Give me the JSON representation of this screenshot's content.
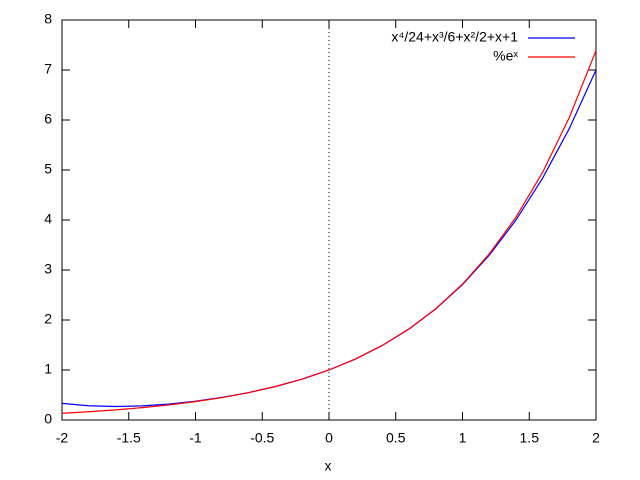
{
  "chart_data": {
    "type": "line",
    "xlabel": "x",
    "x": [
      -2,
      -1.8,
      -1.6,
      -1.4,
      -1.2,
      -1,
      -0.8,
      -0.6,
      -0.4,
      -0.2,
      0,
      0.2,
      0.4,
      0.6,
      0.8,
      1,
      1.2,
      1.4,
      1.6,
      1.8,
      2
    ],
    "series": [
      {
        "name": "x⁴/24+x³/6+x²/2+x+1",
        "color": "#0000ff",
        "values": [
          0.333,
          0.285,
          0.27,
          0.283,
          0.318,
          0.375,
          0.452,
          0.549,
          0.67,
          0.819,
          1,
          1.221,
          1.492,
          1.821,
          2.222,
          2.708,
          3.294,
          3.997,
          4.836,
          5.829,
          7.0
        ]
      },
      {
        "name": "%eˣ",
        "color": "#ff0000",
        "values": [
          0.135,
          0.165,
          0.202,
          0.247,
          0.301,
          0.368,
          0.449,
          0.549,
          0.67,
          0.819,
          1,
          1.221,
          1.492,
          1.822,
          2.226,
          2.718,
          3.32,
          4.055,
          4.953,
          6.05,
          7.389
        ]
      }
    ],
    "xlim": [
      -2,
      2
    ],
    "xticks": [
      -2,
      -1.5,
      -1,
      -0.5,
      0,
      0.5,
      1,
      1.5,
      2
    ],
    "ylim": [
      0,
      8
    ],
    "yticks": [
      0,
      1,
      2,
      3,
      4,
      5,
      6,
      7,
      8
    ],
    "zeroaxis": true,
    "legend": "top-right"
  }
}
